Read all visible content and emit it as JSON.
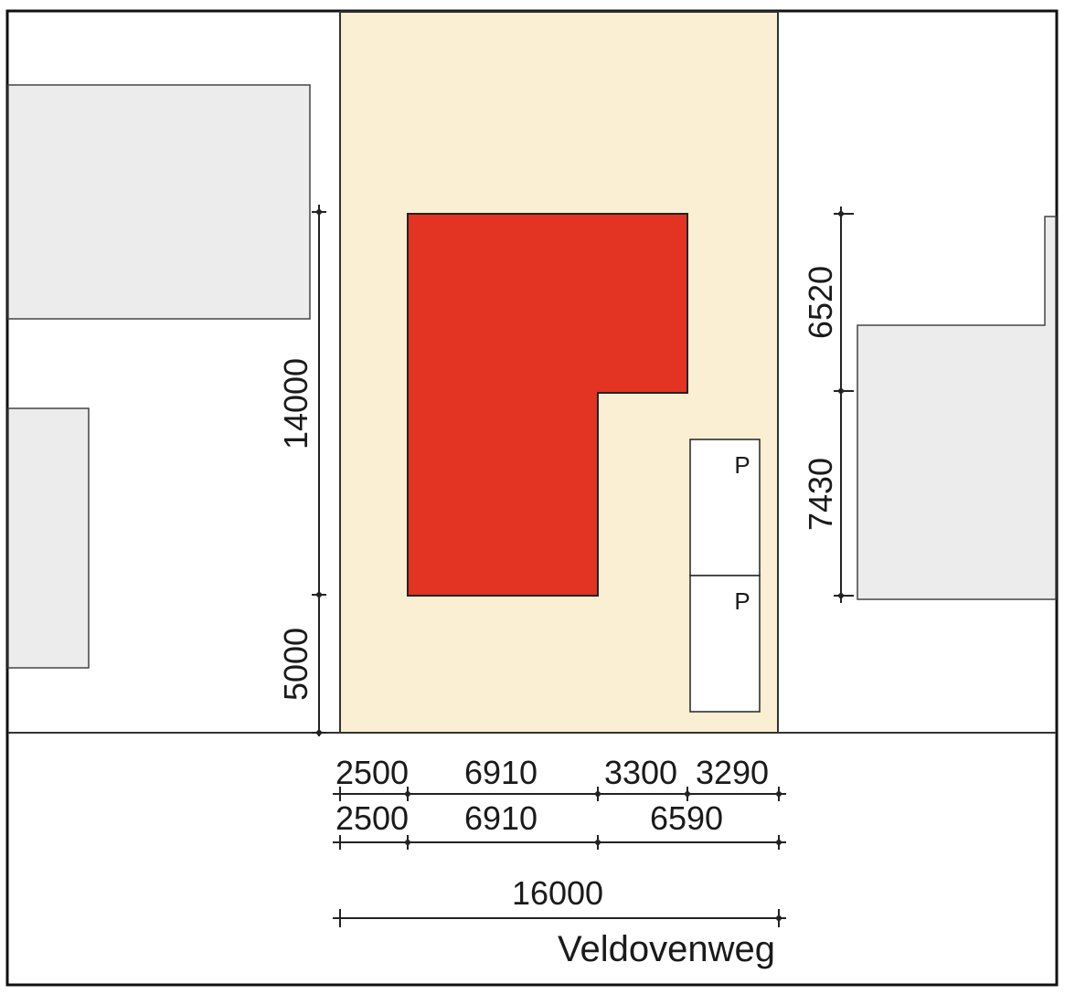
{
  "plan": {
    "street_name": "Veldovenweg",
    "parking": {
      "label_1": "P",
      "label_2": "P"
    },
    "dimensions": {
      "left_upper": "14000",
      "left_lower": "5000",
      "right_upper": "6520",
      "right_lower": "7430",
      "row1": [
        "2500",
        "6910",
        "3300",
        "3290"
      ],
      "row2": [
        "2500",
        "6910",
        "6590"
      ],
      "total": "16000"
    },
    "colors": {
      "plot": "#fbefd3",
      "building": "#e33322",
      "neighbour": "#ececec",
      "line": "#222222"
    }
  }
}
